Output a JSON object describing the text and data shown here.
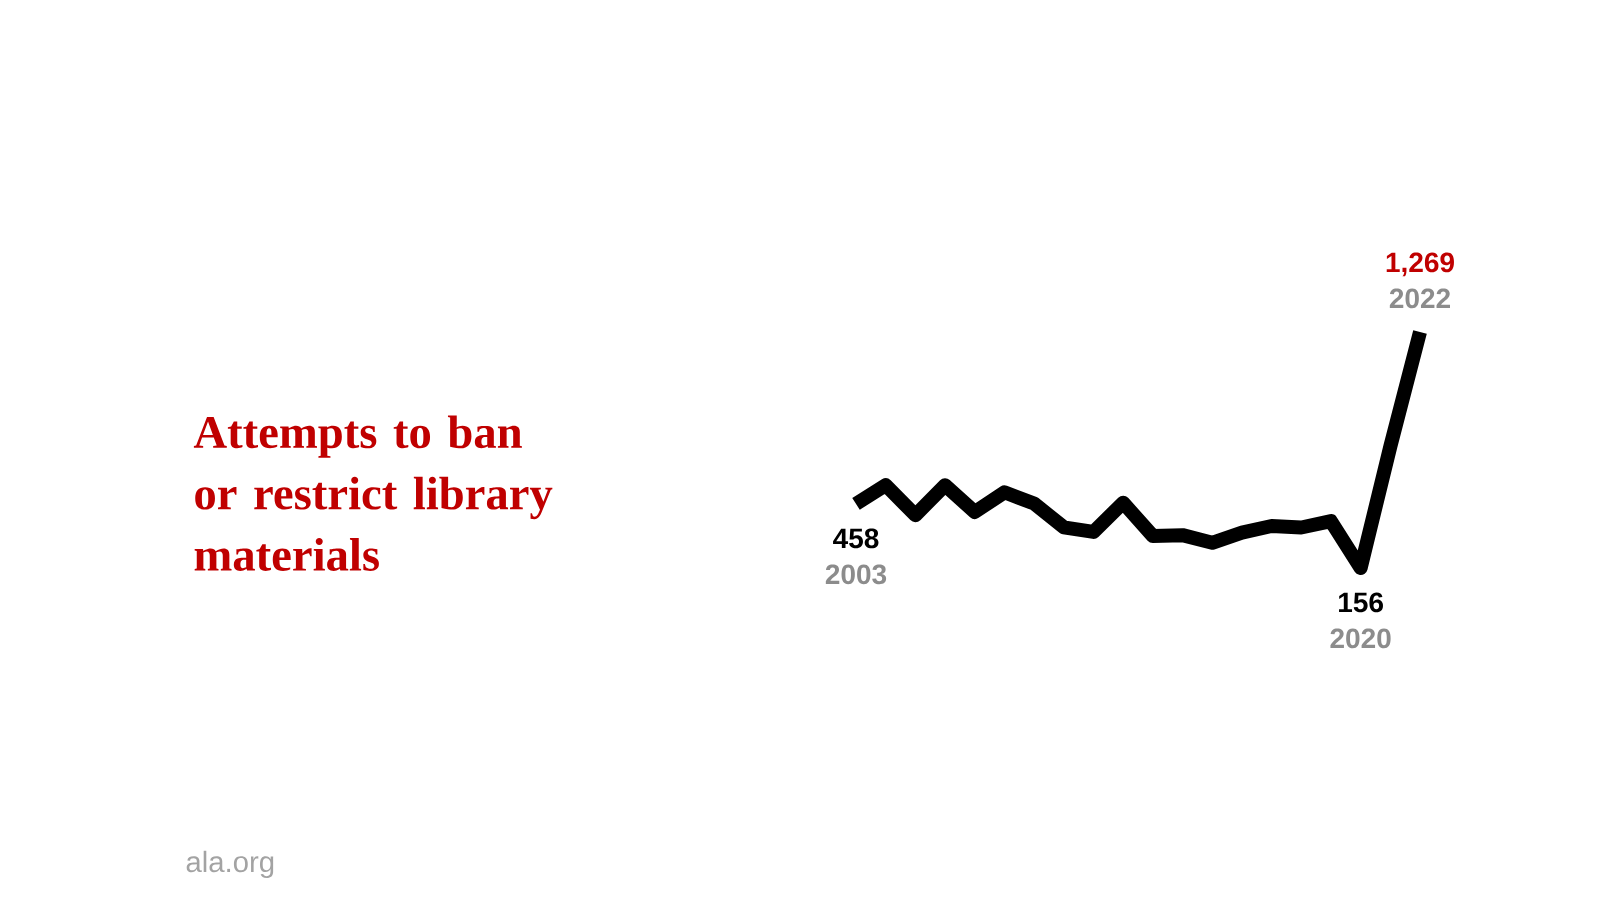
{
  "chart_data": {
    "type": "line",
    "title": "Attempts to ban or restrict library materials",
    "categories": [
      "2003",
      null,
      null,
      null,
      null,
      null,
      null,
      null,
      null,
      null,
      null,
      null,
      null,
      null,
      null,
      null,
      null,
      "2020",
      null,
      "2022"
    ],
    "series": [
      {
        "color": "#000000",
        "values": [
          458,
          547,
          405,
          546,
          420,
          513,
          460,
          348,
          326,
          464,
          307,
          311,
          275,
          323,
          354,
          347,
          377,
          156,
          729,
          1269
        ],
        "value_labels": [
          "458",
          null,
          null,
          null,
          null,
          null,
          null,
          null,
          null,
          null,
          null,
          null,
          null,
          null,
          null,
          null,
          null,
          "156",
          null,
          "1,269"
        ]
      }
    ],
    "marker": "none",
    "line_style": "solid",
    "annotations": [
      "ala.org"
    ]
  }
}
